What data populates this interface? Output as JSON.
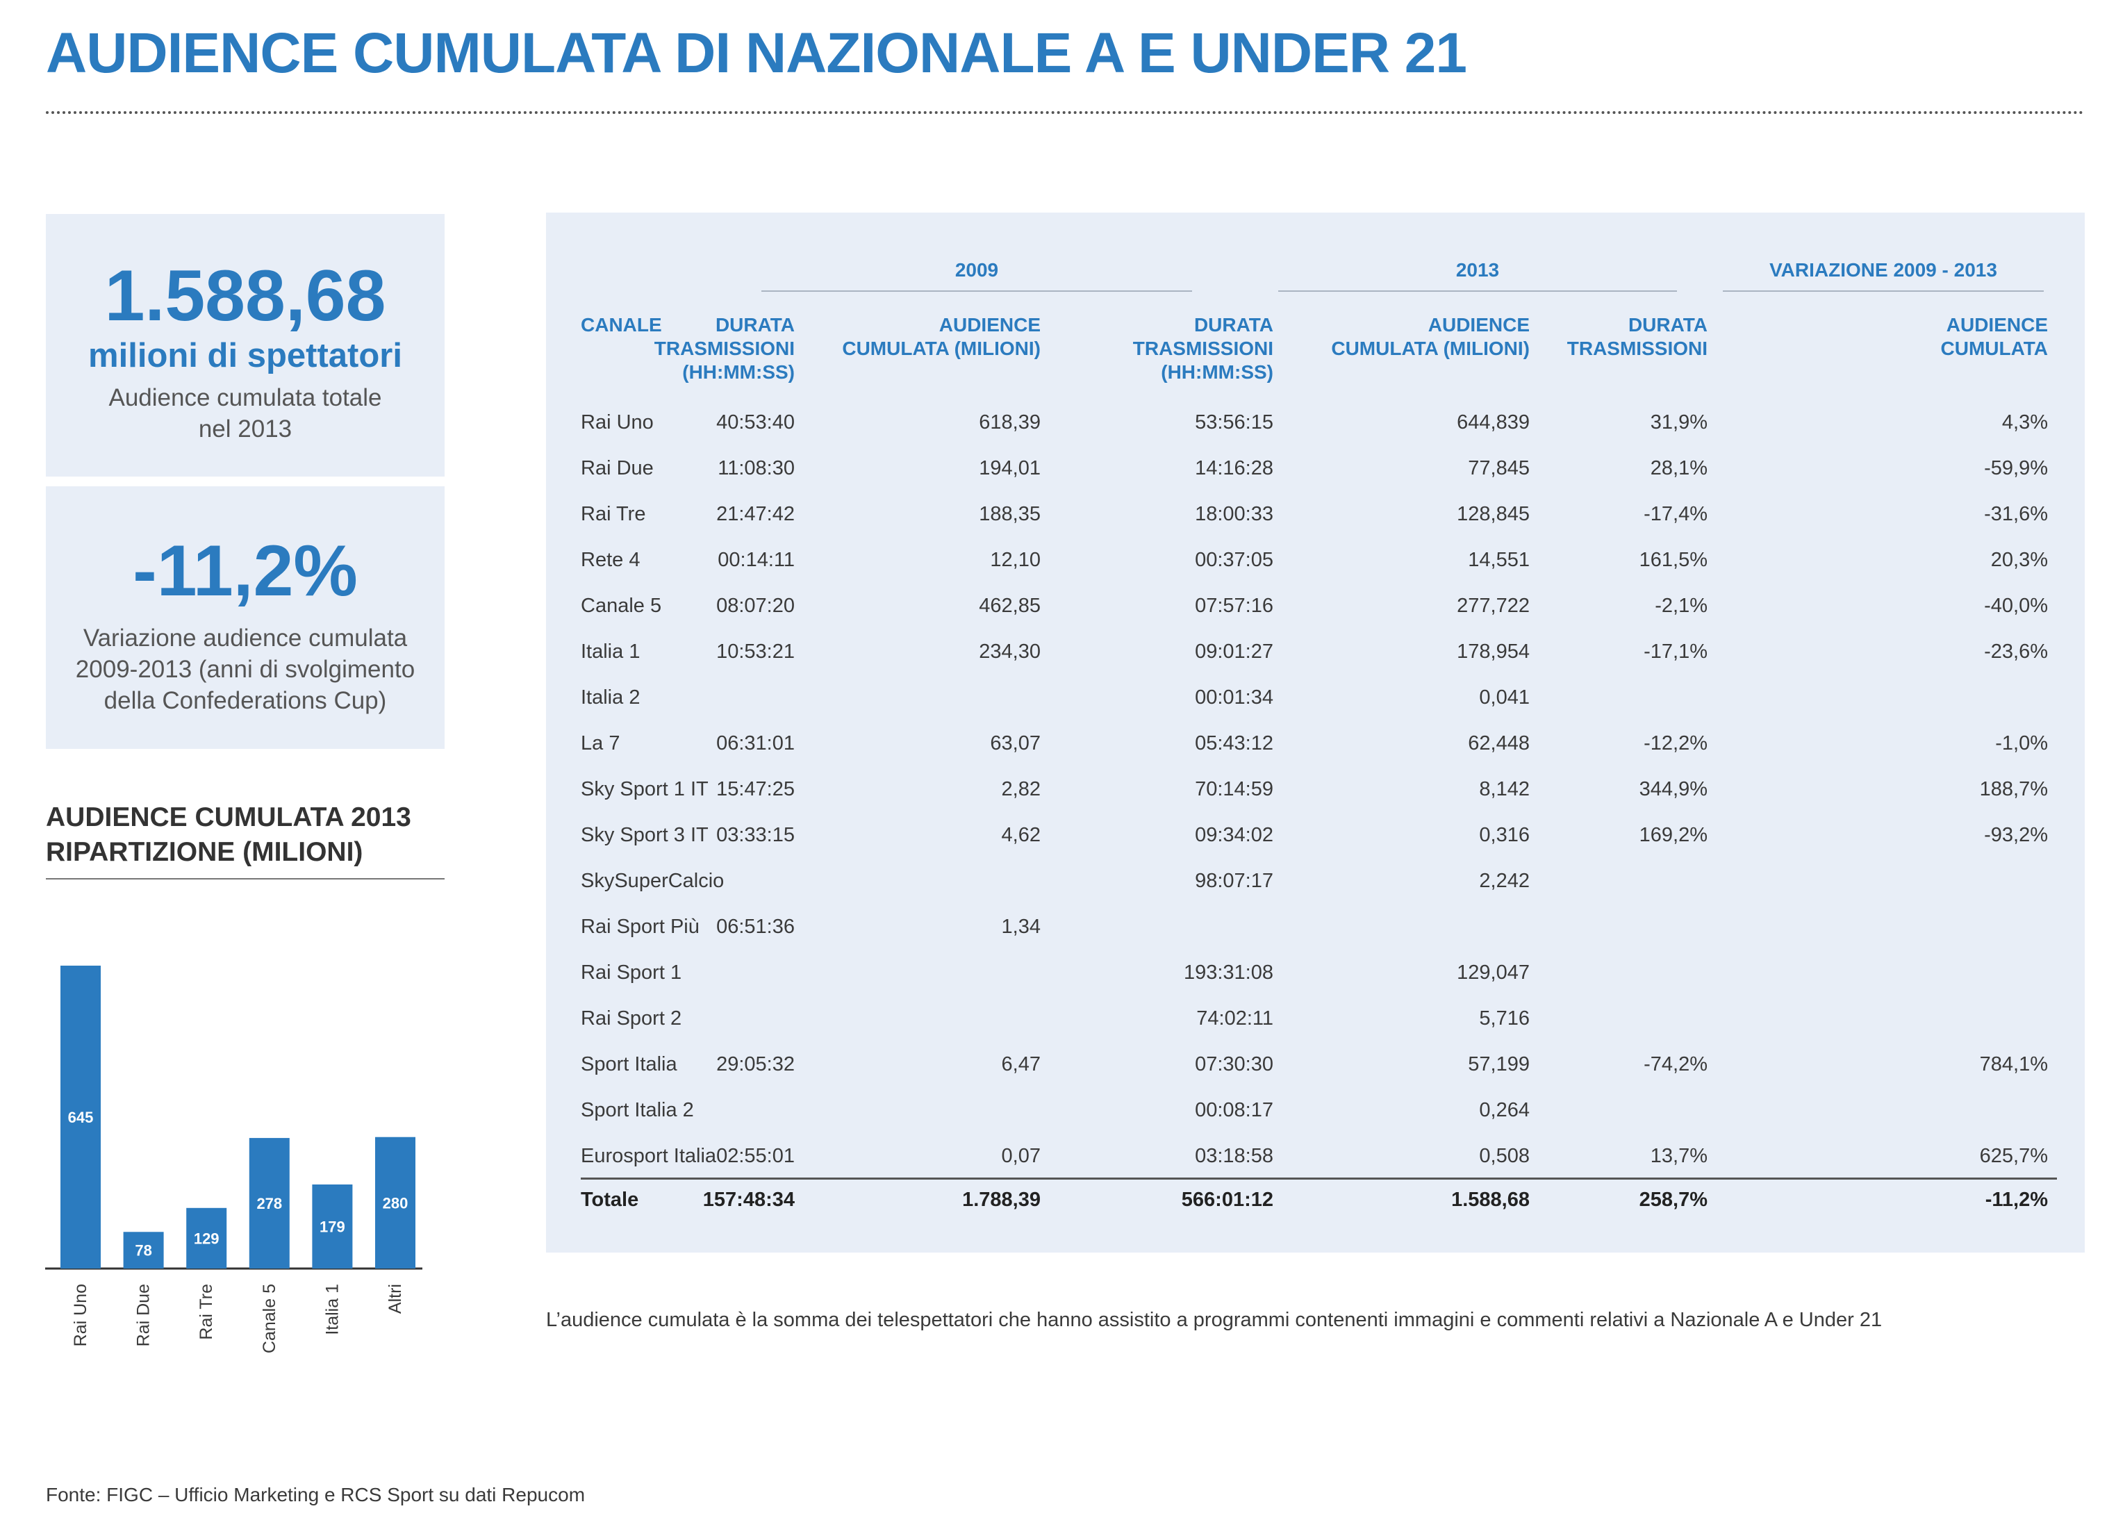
{
  "header": {
    "title": "AUDIENCE CUMULATA DI NAZIONALE A E UNDER 21"
  },
  "kpi1": {
    "value": "1.588,68",
    "unit": "milioni di spettatori",
    "desc_line1": "Audience cumulata totale",
    "desc_line2": "nel 2013"
  },
  "kpi2": {
    "value": "-11,2%",
    "desc_line1": "Variazione audience cumulata",
    "desc_line2": "2009-2013 (anni di svolgimento",
    "desc_line3": "della Confederations Cup)"
  },
  "chart_data": {
    "type": "bar",
    "title": "AUDIENCE CUMULATA 2013 RIPARTIZIONE (MILIONI)",
    "title_line1": "AUDIENCE CUMULATA 2013",
    "title_line2": "RIPARTIZIONE (MILIONI)",
    "categories": [
      "Rai Uno",
      "Rai Due",
      "Rai Tre",
      "Canale 5",
      "Italia 1",
      "Altri"
    ],
    "values": [
      645,
      78,
      129,
      278,
      179,
      280
    ],
    "bar_color": "#2b7bbf",
    "xlabel": "",
    "ylabel": "",
    "grid": false
  },
  "table": {
    "groups": [
      "2009",
      "2013",
      "VARIAZIONE 2009 - 2013"
    ],
    "headers": {
      "canale": [
        "CANALE"
      ],
      "durata2009": [
        "DURATA",
        "TRASMISSIONI",
        "(HH:MM:SS)"
      ],
      "aud2009": [
        "AUDIENCE",
        "CUMULATA (MILIONI)"
      ],
      "durata2013": [
        "DURATA",
        "TRASMISSIONI",
        "(HH:MM:SS)"
      ],
      "aud2013": [
        "AUDIENCE",
        "CUMULATA (MILIONI)"
      ],
      "var_durata": [
        "DURATA",
        "TRASMISSIONI"
      ],
      "var_aud": [
        "AUDIENCE",
        "CUMULATA"
      ]
    },
    "rows": [
      [
        "Rai Uno",
        "40:53:40",
        "618,39",
        "53:56:15",
        "644,839",
        "31,9%",
        "4,3%"
      ],
      [
        "Rai Due",
        "11:08:30",
        "194,01",
        "14:16:28",
        "77,845",
        "28,1%",
        "-59,9%"
      ],
      [
        "Rai Tre",
        "21:47:42",
        "188,35",
        "18:00:33",
        "128,845",
        "-17,4%",
        "-31,6%"
      ],
      [
        "Rete 4",
        "00:14:11",
        "12,10",
        "00:37:05",
        "14,551",
        "161,5%",
        "20,3%"
      ],
      [
        "Canale 5",
        "08:07:20",
        "462,85",
        "07:57:16",
        "277,722",
        "-2,1%",
        "-40,0%"
      ],
      [
        "Italia 1",
        "10:53:21",
        "234,30",
        "09:01:27",
        "178,954",
        "-17,1%",
        "-23,6%"
      ],
      [
        "Italia 2",
        "",
        "",
        "00:01:34",
        "0,041",
        "",
        ""
      ],
      [
        "La 7",
        "06:31:01",
        "63,07",
        "05:43:12",
        "62,448",
        "-12,2%",
        "-1,0%"
      ],
      [
        "Sky Sport 1 IT",
        "15:47:25",
        "2,82",
        "70:14:59",
        "8,142",
        "344,9%",
        "188,7%"
      ],
      [
        "Sky Sport 3 IT",
        "03:33:15",
        "4,62",
        "09:34:02",
        "0,316",
        "169,2%",
        "-93,2%"
      ],
      [
        "SkySuperCalcio",
        "",
        "",
        "98:07:17",
        "2,242",
        "",
        ""
      ],
      [
        "Rai Sport Più",
        "06:51:36",
        "1,34",
        "",
        "",
        "",
        ""
      ],
      [
        "Rai Sport 1",
        "",
        "",
        "193:31:08",
        "129,047",
        "",
        ""
      ],
      [
        "Rai Sport 2",
        "",
        "",
        "74:02:11",
        "5,716",
        "",
        ""
      ],
      [
        "Sport Italia",
        "29:05:32",
        "6,47",
        "07:30:30",
        "57,199",
        "-74,2%",
        "784,1%"
      ],
      [
        "Sport Italia 2",
        "",
        "",
        "00:08:17",
        "0,264",
        "",
        ""
      ],
      [
        "Eurosport Italia",
        "02:55:01",
        "0,07",
        "03:18:58",
        "0,508",
        "13,7%",
        "625,7%"
      ]
    ],
    "total": [
      "Totale",
      "157:48:34",
      "1.788,39",
      "566:01:12",
      "1.588,68",
      "258,7%",
      "-11,2%"
    ]
  },
  "note": "L’audience cumulata è la somma dei telespettatori che hanno assistito a programmi contenenti immagini e commenti relativi a Nazionale A e Under 21",
  "source": "Fonte: FIGC – Ufficio Marketing e RCS Sport su dati Repucom"
}
